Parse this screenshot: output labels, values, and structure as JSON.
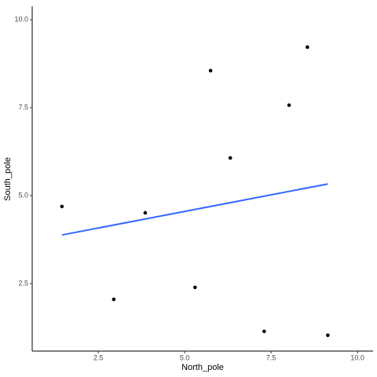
{
  "chart_data": {
    "type": "scatter",
    "x_label": "North_pole",
    "y_label": "South_pole",
    "x": [
      1.45,
      2.95,
      3.86,
      5.3,
      5.75,
      6.32,
      7.3,
      8.02,
      8.55,
      9.14
    ],
    "values": [
      4.69,
      2.05,
      4.51,
      2.39,
      8.55,
      6.07,
      1.14,
      7.57,
      9.22,
      1.03
    ],
    "color": "#000000",
    "fit": {
      "x": [
        1.45,
        9.14
      ],
      "values": [
        3.88,
        5.33
      ],
      "color": "#3366ff"
    },
    "xlim": [
      0.59,
      10.45
    ],
    "xticks": [
      2.5,
      {
        "value": 5,
        "label": "5.0"
      },
      7.5,
      {
        "value": 10,
        "label": "10.0"
      }
    ],
    "ylim": [
      0.58,
      10.38
    ],
    "yticks": [
      2.5,
      {
        "value": 5,
        "label": "5.0"
      },
      7.5,
      {
        "value": 10,
        "label": "10.0"
      }
    ],
    "grid": false
  }
}
